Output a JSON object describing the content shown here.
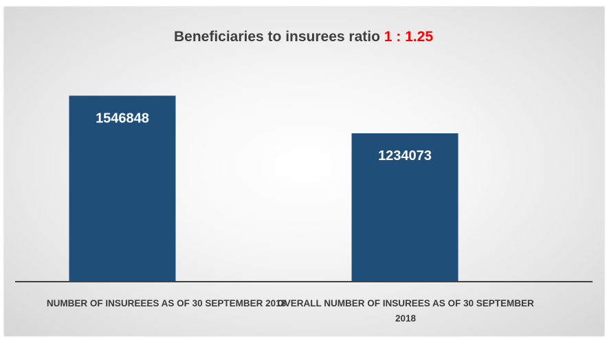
{
  "chart_data": {
    "type": "bar",
    "title_text": "Beneficiaries to insurees ratio",
    "title_ratio": "1 : 1.25",
    "categories": [
      "NUMBER  OF INSUREEES  AS OF  30 SEPTEMBER 2018",
      "OVERALL NUMBER OF INSUREES AS OF 30 SEPTEMBER 2018"
    ],
    "values": [
      1546848,
      1234073
    ],
    "value_labels": [
      "1546848",
      "1234073"
    ],
    "ylim": [
      0,
      1600000
    ],
    "grid": false,
    "legend": "none",
    "colors": {
      "bar": "#1f4e79",
      "title": "#3f3f3f",
      "ratio": "#ff0000",
      "axis": "#404040",
      "value_label": "#ffffff"
    }
  }
}
